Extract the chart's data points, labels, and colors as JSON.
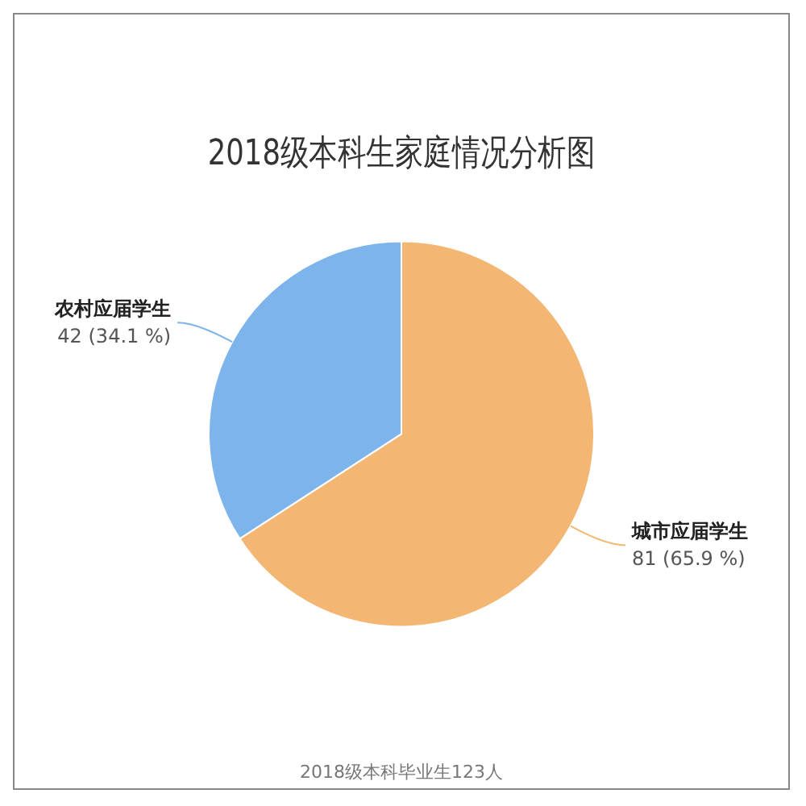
{
  "chart_data": {
    "type": "pie",
    "title": "2018级本科生家庭情况分析图",
    "categories": [
      "城市应届学生",
      "农村应届学生"
    ],
    "values": [
      81,
      42
    ],
    "colors": [
      "#f3b673",
      "#7cb4eb"
    ],
    "value_labels": [
      "81 (65.9 %)",
      "42 (34.1 %)"
    ],
    "legend": false,
    "annotations": [
      "2018级本科毕业生123人"
    ]
  }
}
